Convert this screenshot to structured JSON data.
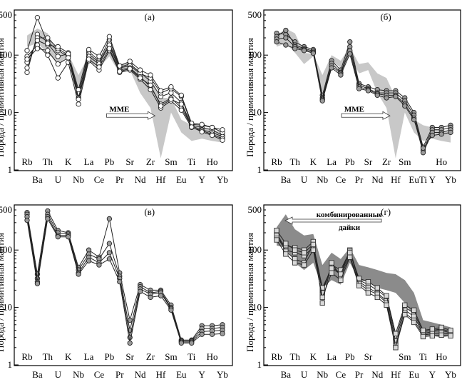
{
  "chart_data": [
    {
      "type": "line",
      "panel_label": "(а)",
      "ylabel": "Порода / примитивная мантия",
      "yscale": "log",
      "ylim": [
        1,
        500
      ],
      "yticks": [
        "1",
        "10",
        "100",
        "500"
      ],
      "x_top": [
        "Rb",
        "Th",
        "K",
        "La",
        "Pb",
        "Sr",
        "Zr",
        "Sm",
        "Ti",
        "Ho"
      ],
      "x_bottom": [
        "Ba",
        "U",
        "Nb",
        "Ce",
        "Pr",
        "Nd",
        "Hf",
        "Eu",
        "Y",
        "Yb"
      ],
      "categories": [
        "Rb",
        "Ba",
        "Th",
        "U",
        "K",
        "Nb",
        "La",
        "Ce",
        "Pb",
        "Pr",
        "Sr",
        "Nd",
        "Zr",
        "Hf",
        "Sm",
        "Eu",
        "Ti",
        "Y",
        "Ho",
        "Yb"
      ],
      "annotation": "MME",
      "shaded_field": {
        "upper": [
          220,
          290,
          240,
          110,
          105,
          45,
          100,
          80,
          140,
          70,
          75,
          48,
          40,
          18,
          18,
          7.5,
          6,
          5.5,
          5,
          4.5
        ],
        "lower": [
          140,
          160,
          110,
          70,
          95,
          22,
          80,
          60,
          95,
          48,
          55,
          22,
          12,
          1.6,
          10,
          4.5,
          3.2,
          3.5,
          3.2,
          3
        ]
      },
      "series": [
        {
          "values": [
            50,
            230,
            170,
            120,
            95,
            20,
            115,
            80,
            185,
            62,
            70,
            50,
            35,
            19,
            22,
            15,
            6,
            5.5,
            5,
            4
          ]
        },
        {
          "values": [
            60,
            200,
            200,
            130,
            100,
            22,
            105,
            75,
            160,
            60,
            65,
            48,
            40,
            22,
            26,
            19,
            6.2,
            6,
            5.5,
            4.5
          ]
        },
        {
          "values": [
            75,
            180,
            150,
            140,
            110,
            18,
            95,
            70,
            150,
            55,
            60,
            42,
            28,
            14,
            18,
            12,
            5.8,
            5,
            4.5,
            3.8
          ]
        },
        {
          "values": [
            95,
            150,
            100,
            40,
            75,
            14,
            80,
            55,
            120,
            50,
            55,
            38,
            25,
            12,
            16,
            11,
            5.5,
            4.8,
            4.2,
            3.5
          ]
        },
        {
          "values": [
            120,
            450,
            160,
            95,
            105,
            25,
            125,
            95,
            210,
            65,
            78,
            55,
            45,
            24,
            28,
            20,
            6.5,
            6.2,
            5.5,
            5
          ]
        },
        {
          "values": [
            85,
            130,
            120,
            70,
            90,
            17,
            85,
            62,
            130,
            52,
            58,
            40,
            30,
            13,
            17,
            14,
            5.6,
            4.6,
            4,
            3.3
          ]
        }
      ]
    },
    {
      "type": "line",
      "panel_label": "(б)",
      "ylabel": "Порода / примитивная мантия",
      "yscale": "log",
      "ylim": [
        1,
        500
      ],
      "yticks": [
        "1",
        "10",
        "100",
        "500"
      ],
      "x_top": [
        "Rb",
        "Th",
        "K",
        "La",
        "Pb",
        "Sr",
        "Zr",
        "Sm",
        "Ho"
      ],
      "x_bottom": [
        "Ba",
        "U",
        "Nb",
        "Ce",
        "Pr",
        "Nd",
        "Hf",
        "Eu",
        "Ti",
        "Y",
        "Yb"
      ],
      "categories": [
        "Rb",
        "Ba",
        "Th",
        "U",
        "K",
        "Nb",
        "La",
        "Ce",
        "Pb",
        "Pr",
        "Sr",
        "Nd",
        "Zr",
        "Hf",
        "Sm",
        "Eu",
        "Ti",
        "Y",
        "Ho",
        "Yb"
      ],
      "annotation": "MME",
      "shaded_field": {
        "upper": [
          220,
          290,
          240,
          110,
          105,
          45,
          100,
          80,
          140,
          70,
          75,
          48,
          40,
          18,
          18,
          7.5,
          6,
          5.5,
          5,
          4.5
        ],
        "lower": [
          140,
          160,
          110,
          70,
          95,
          22,
          80,
          60,
          95,
          48,
          55,
          22,
          12,
          1.6,
          10,
          4.5,
          3.2,
          3.5,
          3.2,
          3
        ]
      },
      "series": [
        {
          "values": [
            240,
            230,
            170,
            140,
            125,
            20,
            80,
            55,
            170,
            32,
            28,
            25,
            24,
            24,
            18,
            10,
            2.5,
            5.5,
            5.5,
            6
          ]
        },
        {
          "values": [
            210,
            270,
            150,
            130,
            118,
            18,
            72,
            50,
            140,
            30,
            26,
            22,
            22,
            22,
            16,
            9,
            2.2,
            5,
            5,
            5.5
          ]
        },
        {
          "values": [
            190,
            200,
            140,
            125,
            112,
            17,
            65,
            48,
            120,
            28,
            25,
            21,
            20,
            20,
            14,
            8,
            2,
            4.5,
            4.5,
            5
          ]
        },
        {
          "values": [
            170,
            150,
            130,
            120,
            108,
            16,
            60,
            45,
            105,
            26,
            24,
            20,
            18,
            19,
            13,
            7.5,
            2.4,
            4,
            4.2,
            4.5
          ]
        }
      ]
    },
    {
      "type": "line",
      "panel_label": "(в)",
      "ylabel": "Порода / примитивная мантия",
      "yscale": "log",
      "ylim": [
        1,
        500
      ],
      "yticks": [
        "1",
        "10",
        "100",
        "500"
      ],
      "x_top": [
        "Rb",
        "Th",
        "K",
        "La",
        "Pb",
        "Sr",
        "Zr",
        "Sm",
        "Ti",
        "Ho"
      ],
      "x_bottom": [
        "Ba",
        "U",
        "Nb",
        "Ce",
        "Pr",
        "Nd",
        "Hf",
        "Eu",
        "Y",
        "Yb"
      ],
      "categories": [
        "Rb",
        "Ba",
        "Th",
        "U",
        "K",
        "Nb",
        "La",
        "Ce",
        "Pb",
        "Pr",
        "Sr",
        "Nd",
        "Zr",
        "Hf",
        "Sm",
        "Eu",
        "Ti",
        "Y",
        "Ho",
        "Yb"
      ],
      "series": [
        {
          "values": [
            450,
            38,
            480,
            220,
            200,
            50,
            100,
            75,
            350,
            40,
            6,
            25,
            20,
            20,
            11,
            2.7,
            2.7,
            4.8,
            4.8,
            5
          ]
        },
        {
          "values": [
            420,
            32,
            420,
            200,
            190,
            45,
            85,
            70,
            130,
            35,
            4,
            23,
            18,
            19,
            10,
            2.6,
            2.6,
            4.3,
            4.3,
            4.5
          ]
        },
        {
          "values": [
            380,
            28,
            380,
            180,
            180,
            40,
            75,
            60,
            90,
            32,
            3,
            21,
            17,
            18,
            9.5,
            2.5,
            2.5,
            3.8,
            3.9,
            4
          ]
        },
        {
          "values": [
            330,
            26,
            350,
            170,
            170,
            38,
            65,
            55,
            70,
            28,
            2.4,
            19,
            15,
            16,
            9,
            2.4,
            2.4,
            3.4,
            3.4,
            3.5
          ]
        }
      ]
    },
    {
      "type": "line",
      "panel_label": "(г)",
      "ylabel": "Порода / примитивная мантия",
      "yscale": "log",
      "ylim": [
        1,
        500
      ],
      "yticks": [
        "1",
        "10",
        "100",
        "500"
      ],
      "x_top": [
        "Rb",
        "Th",
        "K",
        "La",
        "Pb",
        "Sr",
        "Sm",
        "Ti",
        "Ho"
      ],
      "x_bottom": [
        "Ba",
        "U",
        "Nb",
        "Ce",
        "Pr",
        "Nd",
        "Hf",
        "Eu",
        "Y",
        "Yb"
      ],
      "categories": [
        "Rb",
        "Ba",
        "Th",
        "U",
        "K",
        "Nb",
        "La",
        "Ce",
        "Pb",
        "Pr",
        "Sr",
        "Nd",
        "Zr",
        "Hf",
        "Sm",
        "Eu",
        "Ti",
        "Y",
        "Ho",
        "Yb"
      ],
      "annotation": "комбинированные дайки",
      "shaded_field": {
        "upper": [
          250,
          420,
          230,
          180,
          190,
          55,
          90,
          70,
          110,
          55,
          50,
          45,
          40,
          38,
          30,
          18,
          6,
          5.5,
          5,
          4.5
        ],
        "lower": [
          120,
          110,
          60,
          45,
          60,
          22,
          30,
          25,
          60,
          30,
          28,
          22,
          20,
          18,
          12,
          7,
          3.2,
          3.2,
          3,
          3.2
        ]
      },
      "series": [
        {
          "values": [
            200,
            100,
            90,
            80,
            110,
            20,
            50,
            40,
            100,
            30,
            25,
            20,
            15,
            3,
            10,
            8,
            3.8,
            4,
            4.2,
            3.8
          ]
        },
        {
          "values": [
            180,
            95,
            70,
            60,
            130,
            18,
            55,
            45,
            95,
            28,
            22,
            18,
            13,
            2.6,
            9,
            7,
            3.5,
            3.8,
            4,
            3.6
          ]
        },
        {
          "values": [
            160,
            120,
            110,
            100,
            140,
            12,
            60,
            35,
            80,
            26,
            20,
            17,
            12,
            2.2,
            8,
            6,
            3.3,
            3.5,
            3.6,
            3.4
          ]
        },
        {
          "values": [
            220,
            130,
            100,
            90,
            125,
            22,
            48,
            38,
            90,
            32,
            28,
            22,
            16,
            3.5,
            11,
            9,
            4,
            4.2,
            4.5,
            4
          ]
        },
        {
          "values": [
            150,
            85,
            60,
            55,
            100,
            15,
            40,
            30,
            75,
            24,
            18,
            15,
            11,
            2,
            7.5,
            5.5,
            3.1,
            3.2,
            3.3,
            3.2
          ]
        }
      ]
    }
  ]
}
